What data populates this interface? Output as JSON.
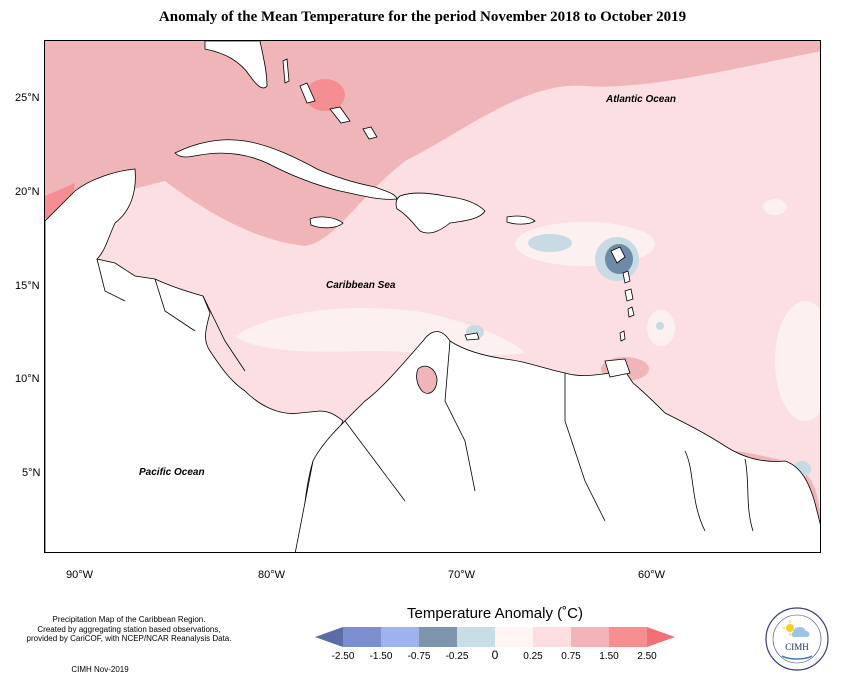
{
  "title": "Anomaly of the Mean Temperature for the period November 2018 to October 2019",
  "map": {
    "lat_ticks": [
      "25°N",
      "20°N",
      "15°N",
      "10°N",
      "5°N"
    ],
    "lon_ticks": [
      "90°W",
      "80°W",
      "70°W",
      "60°W"
    ],
    "labels": {
      "atlantic": "Atlantic Ocean",
      "caribbean": "Caribbean Sea",
      "pacific": "Pacific Ocean"
    }
  },
  "footer": {
    "line1": "Precipitation Map of the Caribbean Region.",
    "line2": "Created by aggregating station based observations,",
    "line3": "provided by CariCOF, with NCEP/NCAR Reanalysis Data.",
    "credit": "CIMH Nov-2019"
  },
  "legend": {
    "title": "Temperature Anomaly (˚C)",
    "ticks": [
      "-2.50",
      "-1.50",
      "-0.75",
      "-0.25",
      "0",
      "0.25",
      "0.75",
      "1.50",
      "2.50"
    ],
    "colors": [
      "#5b6ca8",
      "#7d8fd0",
      "#9fb2f0",
      "#7e95ad",
      "#c9dde6",
      "#fff5f5",
      "#fbdde2",
      "#f3b3b8",
      "#f78e92",
      "#f26f75"
    ]
  },
  "colors": {
    "land": "#ffffff",
    "sea_base": "#fbdfe2",
    "warm": "#f0b5b9",
    "hot": "#f48e92",
    "neutral": "#fdf0f1",
    "cool": "#c6dbe3",
    "cold": "#6f8aa6"
  },
  "logo": {
    "name": "CIMH"
  }
}
